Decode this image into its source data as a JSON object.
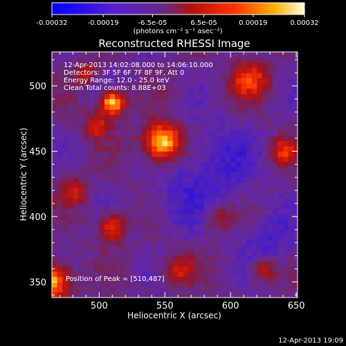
{
  "chart_data": {
    "type": "heatmap",
    "title": "Reconstructed RHESSI Image",
    "xlabel": "Heliocentric X (arcsec)",
    "ylabel": "Heliocentric Y (arcsec)",
    "xlim": [
      464,
      651
    ],
    "ylim": [
      338,
      526
    ],
    "xticks": [
      500,
      550,
      600,
      650
    ],
    "yticks": [
      350,
      400,
      450,
      500
    ],
    "colorbar": {
      "range": [
        -0.00032,
        0.00032
      ],
      "tick_values": [
        -0.00032,
        -0.00019,
        -6.5e-05,
        6.5e-05,
        0.00019,
        0.00032
      ],
      "tick_labels": [
        "-0.00032",
        "-0.00019",
        "-6.5e-05",
        "6.5e-05",
        "0.00019",
        "0.00032"
      ],
      "units_label": "(photons cm⁻² s⁻¹ asec⁻²)"
    },
    "annotations": [
      "12-Apr-2013 14:02:08.000 to 14:06:10.000",
      "Detectors: 3F 5F 6F 7F 8F 9F, Att 0",
      "Energy Range: 12.0 - 25.0 keV",
      "Clean     Total counts: 8.88E+03"
    ],
    "peak_label": "Position of Peak = [510,487]",
    "sources": [
      {
        "x": 548,
        "y": 457,
        "r": 14,
        "amp": 1.0
      },
      {
        "x": 510,
        "y": 487,
        "r": 9,
        "amp": 0.95
      },
      {
        "x": 464,
        "y": 350,
        "r": 14,
        "amp": 0.85
      },
      {
        "x": 510,
        "y": 392,
        "r": 10,
        "amp": 0.6
      },
      {
        "x": 498,
        "y": 470,
        "r": 10,
        "amp": 0.45
      },
      {
        "x": 615,
        "y": 505,
        "r": 14,
        "amp": 0.55
      },
      {
        "x": 640,
        "y": 450,
        "r": 10,
        "amp": 0.45
      },
      {
        "x": 560,
        "y": 360,
        "r": 12,
        "amp": 0.4
      },
      {
        "x": 480,
        "y": 420,
        "r": 10,
        "amp": 0.4
      },
      {
        "x": 590,
        "y": 400,
        "r": 10,
        "amp": 0.35
      },
      {
        "x": 625,
        "y": 360,
        "r": 9,
        "amp": 0.45
      },
      {
        "x": 490,
        "y": 510,
        "r": 8,
        "amp": 0.35
      }
    ]
  },
  "footer_timestamp": "12-Apr-2013 19:09"
}
